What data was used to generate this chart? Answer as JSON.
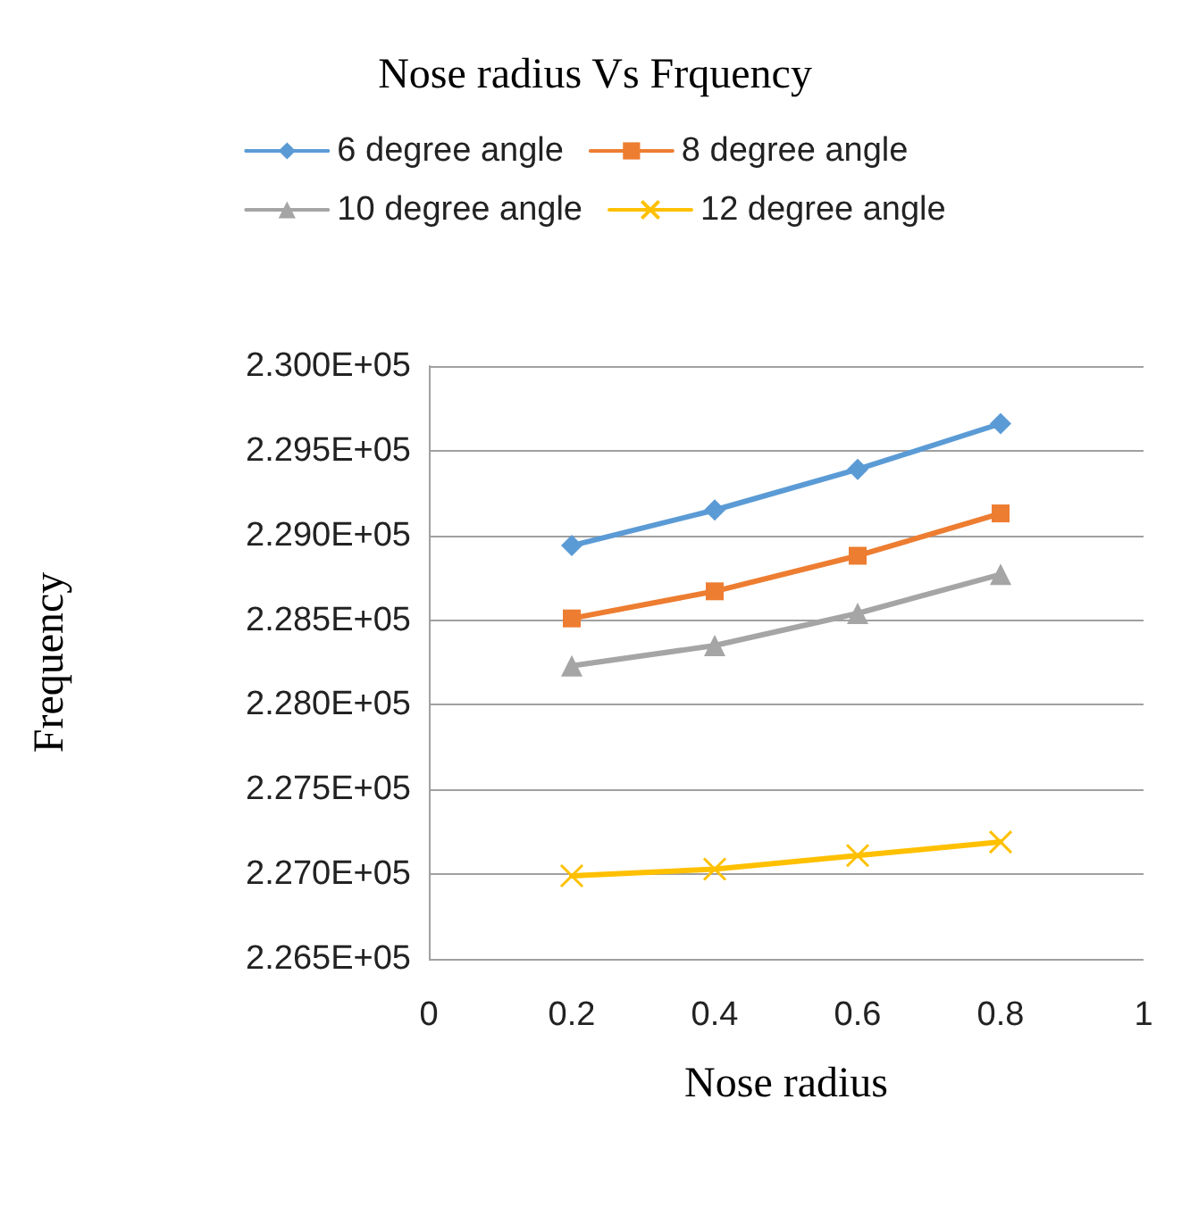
{
  "chart_data": {
    "type": "line",
    "title": "Nose radius Vs Frquency",
    "xlabel": "Nose radius",
    "ylabel": "Frequency",
    "x": [
      0.2,
      0.4,
      0.6,
      0.8
    ],
    "series": [
      {
        "name": "6 degree angle",
        "color": "#5b9bd5",
        "marker": "diamond",
        "values": [
          228940,
          229150,
          229390,
          229660
        ]
      },
      {
        "name": "8 degree angle",
        "color": "#ed7d31",
        "marker": "square",
        "values": [
          228510,
          228670,
          228880,
          229130
        ]
      },
      {
        "name": "10 degree angle",
        "color": "#a5a5a5",
        "marker": "triangle",
        "values": [
          228230,
          228350,
          228540,
          228770
        ]
      },
      {
        "name": "12 degree angle",
        "color": "#ffc000",
        "marker": "cross",
        "values": [
          226990,
          227030,
          227110,
          227190
        ]
      }
    ],
    "xlim": [
      0,
      1
    ],
    "xticks": [
      0,
      0.2,
      0.4,
      0.6,
      0.8,
      1
    ],
    "ylim": [
      226500,
      230000
    ],
    "yticks": [
      {
        "value": 226500,
        "label": "2.265E+05"
      },
      {
        "value": 227000,
        "label": "2.270E+05"
      },
      {
        "value": 227500,
        "label": "2.275E+05"
      },
      {
        "value": 228000,
        "label": "2.280E+05"
      },
      {
        "value": 228500,
        "label": "2.285E+05"
      },
      {
        "value": 229000,
        "label": "2.290E+05"
      },
      {
        "value": 229500,
        "label": "2.295E+05"
      },
      {
        "value": 230000,
        "label": "2.300E+05"
      }
    ],
    "grid": "y",
    "legend": "top"
  }
}
